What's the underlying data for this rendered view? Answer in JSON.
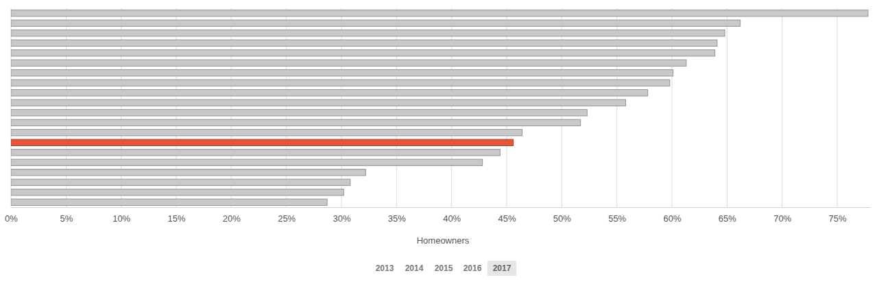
{
  "chart_data": {
    "type": "bar",
    "orientation": "horizontal",
    "x_label": "Homeowners",
    "categories": [
      null,
      null,
      null,
      null,
      null,
      null,
      null,
      null,
      null,
      null,
      null,
      null,
      null,
      null,
      null,
      null,
      null,
      null,
      null,
      null
    ],
    "values": [
      77.8,
      66.2,
      64.8,
      64.1,
      63.9,
      61.3,
      60.1,
      59.8,
      57.8,
      55.8,
      52.3,
      51.7,
      46.4,
      45.6,
      44.4,
      42.8,
      32.2,
      30.8,
      30.2,
      28.7
    ],
    "colors": [
      "#c9c9cc",
      "#c9c9cc",
      "#c9c9cc",
      "#c9c9cc",
      "#c9c9cc",
      "#c9c9cc",
      "#c9c9cc",
      "#c9c9cc",
      "#c9c9cc",
      "#c9c9cc",
      "#c9c9cc",
      "#c9c9cc",
      "#c9c9cc",
      "#e5553d",
      "#c9c9cc",
      "#c9c9cc",
      "#c9c9cc",
      "#c9c9cc",
      "#c9c9cc",
      "#c9c9cc"
    ],
    "xlim": [
      0,
      78
    ],
    "xticks": [
      {
        "value": 0,
        "label": "0%"
      },
      {
        "value": 5,
        "label": "5%"
      },
      {
        "value": 10,
        "label": "10%"
      },
      {
        "value": 15,
        "label": "15%"
      },
      {
        "value": 20,
        "label": "20%"
      },
      {
        "value": 25,
        "label": "25%"
      },
      {
        "value": 30,
        "label": "30%"
      },
      {
        "value": 35,
        "label": "35%"
      },
      {
        "value": 40,
        "label": "40%"
      },
      {
        "value": 45,
        "label": "45%"
      },
      {
        "value": 50,
        "label": "50%"
      },
      {
        "value": 55,
        "label": "55%"
      },
      {
        "value": 60,
        "label": "60%"
      },
      {
        "value": 65,
        "label": "65%"
      },
      {
        "value": 70,
        "label": "70%"
      },
      {
        "value": 75,
        "label": "75%"
      }
    ],
    "grid": true,
    "tick_labels": "x"
  },
  "year_selector": {
    "options": [
      "2013",
      "2014",
      "2015",
      "2016",
      "2017"
    ],
    "selected": "2017"
  }
}
